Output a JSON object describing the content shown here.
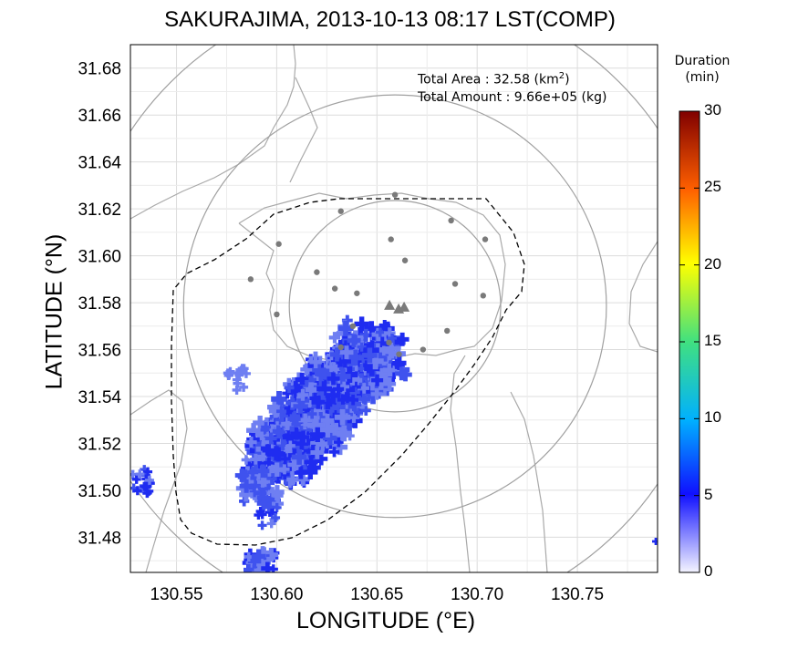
{
  "title": "SAKURAJIMA, 2013-10-13 08:17 LST(COMP)",
  "axes": {
    "xlabel": "LONGITUDE (°E)",
    "ylabel": "LATITUDE (°N)",
    "xlim": [
      130.527,
      130.79
    ],
    "ylim": [
      31.465,
      31.69
    ],
    "xticks": [
      "130.55",
      "130.60",
      "130.65",
      "130.70",
      "130.75"
    ],
    "yticks": [
      "31.68",
      "31.66",
      "31.64",
      "31.62",
      "31.60",
      "31.58",
      "31.56",
      "31.54",
      "31.52",
      "31.50",
      "31.48"
    ],
    "grid": true
  },
  "info": {
    "area_label": "Total Area   : 32.58 (km",
    "area_sup": "2",
    "area_close": ")",
    "amount_label": "Total Amount : 9.66e+05 (kg)"
  },
  "colorbar": {
    "title_line1": "Duration",
    "title_line2": "(min)",
    "ticks": [
      "30",
      "25",
      "20",
      "15",
      "10",
      "5",
      "0"
    ],
    "range": [
      0,
      30
    ]
  },
  "colors": {
    "deposit_dark": "#1f2cf0",
    "deposit_mid": "#3f52ee",
    "deposit_light": "#6f7ff2",
    "circle": "#a0a0a0",
    "coast": "#a9a9a9",
    "station": "#7a7a7a",
    "grid": "#dcdcdc"
  },
  "vent": {
    "lon": 130.659,
    "lat": 31.5785
  },
  "range_circles_km": [
    5,
    10,
    15
  ],
  "stations": [
    [
      130.632,
      31.619
    ],
    [
      130.659,
      31.626
    ],
    [
      130.687,
      31.615
    ],
    [
      130.704,
      31.607
    ],
    [
      130.601,
      31.605
    ],
    [
      130.657,
      31.607
    ],
    [
      130.664,
      31.598
    ],
    [
      130.62,
      31.593
    ],
    [
      130.629,
      31.586
    ],
    [
      130.587,
      31.59
    ],
    [
      130.64,
      31.584
    ],
    [
      130.689,
      31.588
    ],
    [
      130.703,
      31.583
    ],
    [
      130.6,
      31.575
    ],
    [
      130.638,
      31.57
    ],
    [
      130.685,
      31.568
    ],
    [
      130.632,
      31.561
    ],
    [
      130.661,
      31.558
    ],
    [
      130.673,
      31.56
    ],
    [
      130.656,
      31.563
    ]
  ]
}
